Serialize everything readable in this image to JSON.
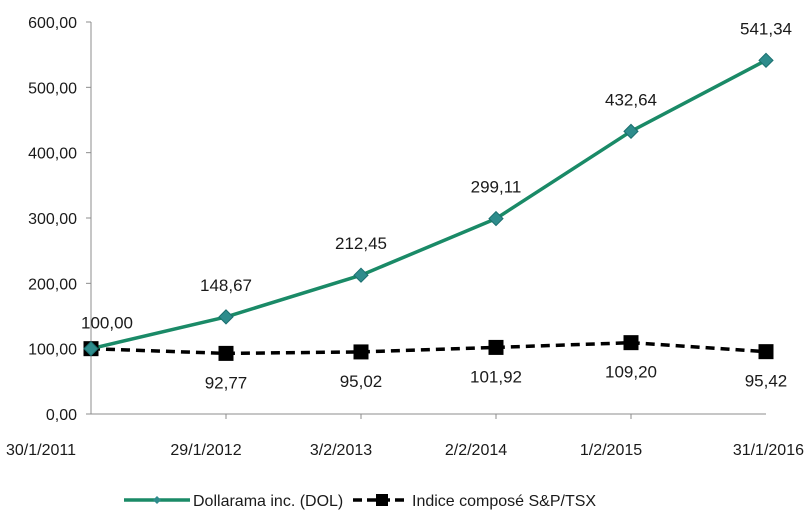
{
  "chart_data": {
    "type": "line",
    "categories": [
      "30/1/2011",
      "29/1/2012",
      "3/2/2013",
      "2/2/2014",
      "1/2/2015",
      "31/1/2016"
    ],
    "ylim": [
      0,
      600
    ],
    "yticks": [
      "0,00",
      "100,00",
      "200,00",
      "300,00",
      "400,00",
      "500,00",
      "600,00"
    ],
    "grid": false,
    "legend_position": "bottom",
    "series": [
      {
        "name": "Dollarama inc. (DOL)",
        "values": [
          100.0,
          148.67,
          212.45,
          299.11,
          432.64,
          541.34
        ],
        "labels": [
          "100,00",
          "148,67",
          "212,45",
          "299,11",
          "432,64",
          "541,34"
        ],
        "color": "#1a8a67",
        "marker": "diamond",
        "line_style": "solid",
        "label_position": "above"
      },
      {
        "name": "Indice composé S&P/TSX",
        "values": [
          100.0,
          92.77,
          95.02,
          101.92,
          109.2,
          95.42
        ],
        "labels": [
          "",
          "92,77",
          "95,02",
          "101,92",
          "109,20",
          "95,42"
        ],
        "color": "#000000",
        "marker": "square",
        "line_style": "dashed",
        "label_position": "below"
      }
    ]
  }
}
